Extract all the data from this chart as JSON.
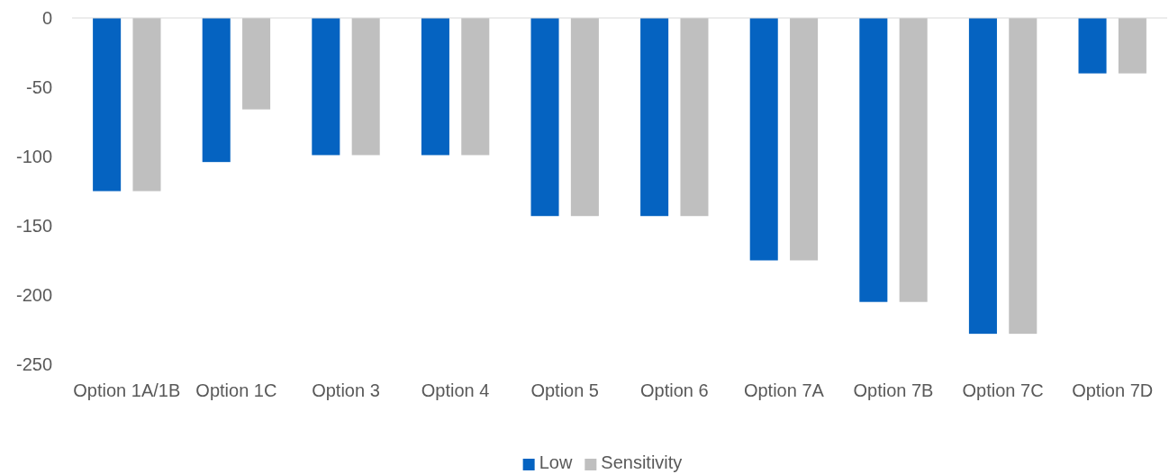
{
  "chart_data": {
    "type": "bar",
    "categories": [
      "Option 1A/1B",
      "Option 1C",
      "Option 3",
      "Option 4",
      "Option 5",
      "Option 6",
      "Option 7A",
      "Option 7B",
      "Option 7C",
      "Option 7D"
    ],
    "series": [
      {
        "name": "Low",
        "color": "#0563c1",
        "values": [
          -125,
          -104,
          -99,
          -99,
          -143,
          -143,
          -175,
          -205,
          -228,
          -40
        ]
      },
      {
        "name": "Sensitivity",
        "color": "#bfbfbf",
        "values": [
          -125,
          -66,
          -99,
          -99,
          -143,
          -143,
          -175,
          -205,
          -228,
          -40
        ]
      }
    ],
    "ylim": [
      -250,
      0
    ],
    "yticks": [
      -250,
      -200,
      -150,
      -100,
      -50,
      0
    ],
    "grid": false,
    "legend": "bottom"
  }
}
